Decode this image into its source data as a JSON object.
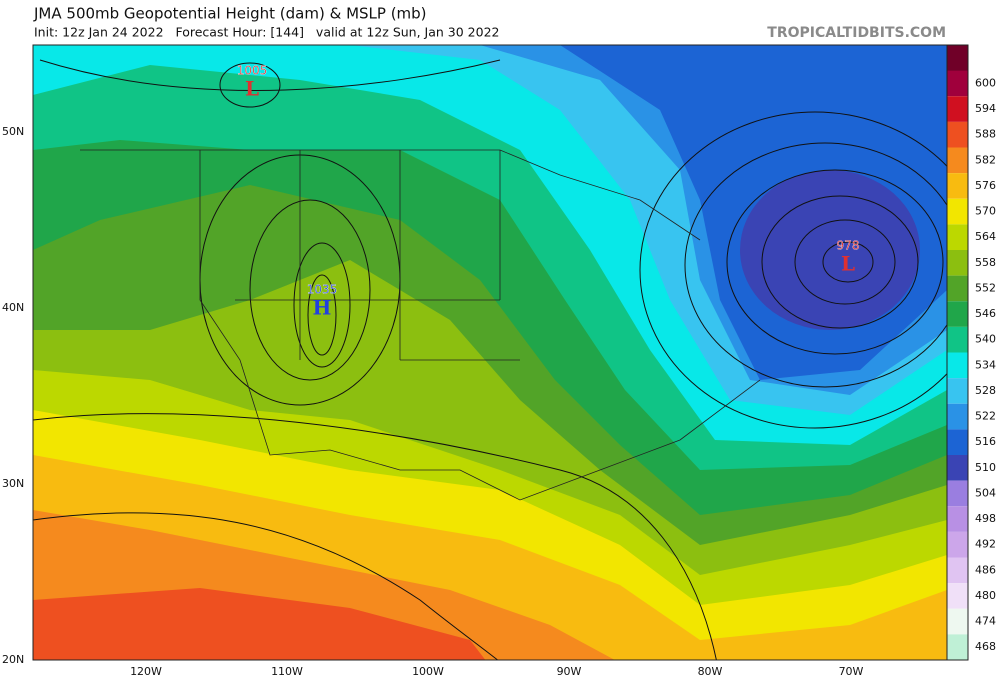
{
  "header": {
    "title": "JMA 500mb Geopotential Height (dam) & MSLP (mb)",
    "subtitle": "Init: 12z Jan 24 2022   Forecast Hour: [144]   valid at 12z Sun, Jan 30 2022",
    "site": "TROPICALTIDBITS.COM"
  },
  "latitude_labels": [
    "50N",
    "40N",
    "30N",
    "20N"
  ],
  "longitude_labels": [
    "120W",
    "110W",
    "100W",
    "90W",
    "80W",
    "70W"
  ],
  "colorbar": [
    {
      "value": 600,
      "color": "#a0003c"
    },
    {
      "value": 594,
      "color": "#d01020"
    },
    {
      "value": 588,
      "color": "#ee5020"
    },
    {
      "value": 582,
      "color": "#f58a1e"
    },
    {
      "value": 576,
      "color": "#f8bb10"
    },
    {
      "value": 570,
      "color": "#f2e600"
    },
    {
      "value": 564,
      "color": "#bcd800"
    },
    {
      "value": 558,
      "color": "#8cbf10"
    },
    {
      "value": 552,
      "color": "#52a428"
    },
    {
      "value": 546,
      "color": "#20a64a"
    },
    {
      "value": 540,
      "color": "#10c486"
    },
    {
      "value": 534,
      "color": "#08e8e8"
    },
    {
      "value": 528,
      "color": "#38c4f0"
    },
    {
      "value": 522,
      "color": "#2a92e6"
    },
    {
      "value": 516,
      "color": "#1c64d4"
    },
    {
      "value": 510,
      "color": "#3a44b4"
    },
    {
      "value": 504,
      "color": "#9a7ee0"
    },
    {
      "value": 498,
      "color": "#b890e4"
    },
    {
      "value": 492,
      "color": "#cca6ea"
    },
    {
      "value": 486,
      "color": "#e0c4f2"
    },
    {
      "value": 480,
      "color": "#f0e0f8"
    },
    {
      "value": 474,
      "color": "#eef8f0"
    },
    {
      "value": 468,
      "color": "#bff0d6"
    }
  ],
  "pressure_centers": [
    {
      "pressure": "1005",
      "label": "L",
      "color": "#e03030"
    },
    {
      "pressure": "1035",
      "label": "H",
      "color": "#2040e0"
    },
    {
      "pressure": "978",
      "label": "L",
      "color": "#e03030"
    }
  ]
}
